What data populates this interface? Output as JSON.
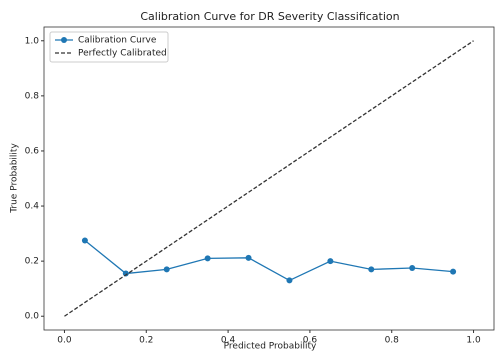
{
  "chart_data": {
    "type": "line",
    "title": "Calibration Curve for DR Severity Classification",
    "xlabel": "Predicted Probability",
    "ylabel": "True Probability",
    "series": [
      {
        "name": "Calibration Curve",
        "color": "#1f77b4",
        "marker": "o",
        "linestyle": "solid",
        "x": [
          0.05,
          0.15,
          0.25,
          0.35,
          0.45,
          0.55,
          0.65,
          0.75,
          0.85,
          0.95
        ],
        "values": [
          0.275,
          0.155,
          0.17,
          0.21,
          0.212,
          0.13,
          0.2,
          0.17,
          0.175,
          0.162
        ]
      },
      {
        "name": "Perfectly Calibrated",
        "color": "#333333",
        "linestyle": "dashed",
        "x": [
          0,
          1
        ],
        "values": [
          0,
          1
        ]
      }
    ],
    "xlim": [
      -0.05,
      1.05
    ],
    "xticks": [
      {
        "value": 0,
        "label": "0.0"
      },
      0.2,
      0.4,
      0.6,
      0.8,
      {
        "value": 1,
        "label": "1.0"
      }
    ],
    "ylim": [
      -0.05,
      1.05
    ],
    "yticks": [
      {
        "value": 0,
        "label": "0.0"
      },
      0.2,
      0.4,
      0.6,
      0.8,
      {
        "value": 1,
        "label": "1.0"
      }
    ],
    "grid": false,
    "legend": "upper left"
  }
}
